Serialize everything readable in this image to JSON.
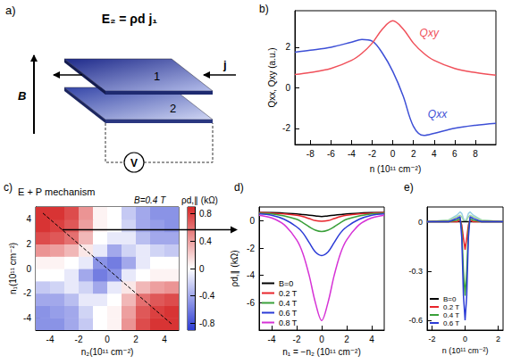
{
  "diagram": {
    "panel_label": "a)",
    "equation": "E₂ = ρd j₁",
    "field": "B",
    "layers": [
      "1",
      "2"
    ],
    "current": "j",
    "meter": "V"
  },
  "chart_data": [
    {
      "panel_label": "b)",
      "type": "line",
      "x": [
        -9.5,
        -8,
        -6,
        -4,
        -3,
        -2,
        -1,
        0,
        1,
        2,
        3,
        4,
        6,
        8,
        10
      ],
      "series": [
        {
          "color": "#3d4fd6",
          "values": [
            1.75,
            1.85,
            2.0,
            2.25,
            2.38,
            2.3,
            1.7,
            0.8,
            -0.4,
            -1.9,
            -2.35,
            -2.25,
            -2.0,
            -1.85,
            -1.75
          ]
        },
        {
          "color": "#f0505a",
          "values": [
            0.65,
            0.75,
            0.95,
            1.35,
            1.7,
            2.2,
            2.9,
            3.3,
            2.9,
            2.2,
            1.7,
            1.35,
            0.95,
            0.75,
            0.62
          ]
        }
      ],
      "annotations": [
        {
          "text": "Qxy",
          "x": 2.6,
          "y": 2.7,
          "color": "#f0505a"
        },
        {
          "text": "Qxx",
          "x": 3.4,
          "y": -1.3,
          "color": "#3d4fd6"
        }
      ],
      "x_label": "n (10¹¹ cm⁻²)",
      "y_label": "Qxx, Qxy (a.u.)",
      "xlim": [
        -9.5,
        10
      ],
      "ylim": [
        -2.8,
        3.8
      ],
      "xticks": [
        -8,
        -6,
        -4,
        -2,
        0,
        2,
        4,
        6,
        8
      ],
      "yticks": [
        -2,
        0,
        2
      ]
    },
    {
      "panel_label": "c)",
      "type": "heatmap",
      "title": "E + P mechanism",
      "subtitle": "B=0.4 T",
      "x": [
        -4.5,
        -3.5,
        -2.5,
        -1.5,
        -0.5,
        0.5,
        1.5,
        2.5,
        3.5,
        4.5
      ],
      "y": [
        -4.5,
        -3.5,
        -2.5,
        -1.5,
        -0.5,
        0.5,
        1.5,
        2.5,
        3.5,
        4.5
      ],
      "cells": [
        [
          -0.5,
          -0.5,
          -0.4,
          -0.25,
          0.0,
          0.05,
          0.45,
          0.75,
          0.85,
          0.85
        ],
        [
          -0.5,
          -0.45,
          -0.4,
          -0.2,
          0.0,
          0.05,
          0.4,
          0.7,
          0.8,
          0.85
        ],
        [
          -0.4,
          -0.4,
          -0.3,
          -0.1,
          -0.1,
          0.0,
          0.3,
          0.6,
          0.7,
          0.75
        ],
        [
          -0.25,
          -0.2,
          -0.1,
          -0.2,
          -0.4,
          -0.1,
          0.1,
          0.3,
          0.4,
          0.45
        ],
        [
          0.0,
          0.0,
          -0.1,
          -0.4,
          -0.6,
          -0.5,
          -0.1,
          0.0,
          0.05,
          0.05
        ],
        [
          0.05,
          0.05,
          0.0,
          -0.1,
          -0.5,
          -0.6,
          -0.4,
          -0.1,
          0.0,
          0.0
        ],
        [
          0.45,
          0.4,
          0.3,
          0.1,
          -0.1,
          -0.4,
          -0.2,
          -0.1,
          -0.2,
          -0.25
        ],
        [
          0.75,
          0.7,
          0.6,
          0.3,
          0.0,
          -0.1,
          -0.1,
          -0.3,
          -0.4,
          -0.4
        ],
        [
          0.85,
          0.8,
          0.7,
          0.4,
          0.05,
          0.0,
          -0.2,
          -0.4,
          -0.45,
          -0.5
        ],
        [
          0.85,
          0.85,
          0.75,
          0.45,
          0.05,
          0.0,
          -0.25,
          -0.4,
          -0.5,
          -0.5
        ]
      ],
      "x_label": "n₂(10¹¹ cm⁻²)",
      "y_label": "n₁(10¹¹ cm⁻²)",
      "xlim": [
        -5,
        5
      ],
      "ylim": [
        -5,
        5
      ],
      "xticks": [
        -4,
        -2,
        0,
        2,
        4
      ],
      "yticks": [
        -4,
        -2,
        0,
        2,
        4
      ],
      "colorbar_label": "ρd,∥ (kΩ)",
      "colorbar_lim": [
        -0.9,
        0.9
      ],
      "colorbar_ticks": [
        -0.8,
        -0.4,
        0,
        0.4,
        0.8
      ],
      "cut_line": {
        "x": [
          -4.5,
          4.5
        ],
        "y": [
          4.5,
          -4.5
        ]
      }
    },
    {
      "panel_label": "d)",
      "type": "line",
      "x": [
        -5,
        -4,
        -3,
        -2,
        -1.5,
        -1,
        -0.5,
        0,
        0.5,
        1,
        1.5,
        2,
        3,
        4,
        5
      ],
      "series": [
        {
          "name": "B=0",
          "color": "#000000",
          "values": [
            0.6,
            0.6,
            0.55,
            0.5,
            0.45,
            0.4,
            0.35,
            0.3,
            0.35,
            0.4,
            0.45,
            0.5,
            0.55,
            0.6,
            0.6
          ]
        },
        {
          "name": "0.2 T",
          "color": "#e8242b",
          "values": [
            0.6,
            0.55,
            0.5,
            0.4,
            0.3,
            0.15,
            0.0,
            -0.05,
            0.0,
            0.15,
            0.3,
            0.4,
            0.5,
            0.55,
            0.6
          ]
        },
        {
          "name": "0.4 T",
          "color": "#3aa03a",
          "values": [
            0.55,
            0.5,
            0.35,
            0.1,
            -0.15,
            -0.45,
            -0.7,
            -0.8,
            -0.7,
            -0.45,
            -0.15,
            0.1,
            0.35,
            0.5,
            0.55
          ]
        },
        {
          "name": "0.6 T",
          "color": "#2b3bd6",
          "values": [
            0.5,
            0.4,
            0.1,
            -0.45,
            -0.9,
            -1.6,
            -2.3,
            -2.55,
            -2.3,
            -1.6,
            -0.9,
            -0.45,
            0.1,
            0.4,
            0.5
          ]
        },
        {
          "name": "0.8 T",
          "color": "#d633d6",
          "values": [
            0.4,
            0.2,
            -0.3,
            -1.4,
            -2.4,
            -4.0,
            -6.0,
            -7.3,
            -6.0,
            -4.0,
            -2.4,
            -1.4,
            -0.3,
            0.2,
            0.4
          ]
        }
      ],
      "x_label": "n₁ = −n₂ (10¹¹ cm⁻²)",
      "y_label": "ρd,∥ (kΩ)",
      "xlim": [
        -5,
        5
      ],
      "ylim": [
        -8,
        1
      ],
      "xticks": [
        -4,
        -2,
        0,
        2,
        4
      ],
      "yticks": [
        -6,
        -4,
        -2,
        0
      ],
      "legend": "lower left"
    },
    {
      "panel_label": "e)",
      "type": "line",
      "x": [
        -2.3,
        -1,
        -0.5,
        -0.3,
        -0.2,
        -0.1,
        0,
        0.1,
        0.2,
        0.3,
        0.5,
        1,
        2.3
      ],
      "series": [
        {
          "color": "#9ad0e6",
          "values": [
            0,
            0.01,
            0.04,
            0.06,
            0.05,
            0.02,
            0,
            0.02,
            0.05,
            0.06,
            0.04,
            0.01,
            0
          ]
        },
        {
          "color": "#a8d8a0",
          "values": [
            0,
            0.01,
            0.03,
            0.04,
            0.03,
            0.01,
            0,
            0.01,
            0.03,
            0.04,
            0.03,
            0.01,
            0
          ]
        },
        {
          "name": "B=0",
          "color": "#000000",
          "values": [
            0,
            0,
            0,
            0,
            0,
            0,
            0,
            0,
            0,
            0,
            0,
            0,
            0
          ]
        },
        {
          "name": "0.2 T",
          "color": "#e8242b",
          "values": [
            0,
            0,
            0,
            0.01,
            -0.02,
            -0.1,
            -0.17,
            -0.1,
            -0.02,
            0.01,
            0,
            0,
            0
          ]
        },
        {
          "name": "0.4 T",
          "color": "#3aa03a",
          "values": [
            0,
            0,
            0.01,
            0.02,
            -0.05,
            -0.3,
            -0.45,
            -0.3,
            -0.05,
            0.02,
            0.01,
            0,
            0
          ]
        },
        {
          "name": "0.6 T",
          "color": "#2b3bd6",
          "values": [
            0,
            0,
            0.02,
            0.03,
            -0.1,
            -0.45,
            -0.6,
            -0.45,
            -0.1,
            0.03,
            0.02,
            0,
            0
          ]
        }
      ],
      "x_label": "n (10¹¹ cm⁻²)",
      "xlim": [
        -2.3,
        2.3
      ],
      "ylim": [
        -0.66,
        0.09
      ],
      "xticks": [
        -2,
        0,
        2
      ],
      "yticks": [
        -0.6,
        -0.3,
        0
      ],
      "legend": "lower left"
    }
  ]
}
